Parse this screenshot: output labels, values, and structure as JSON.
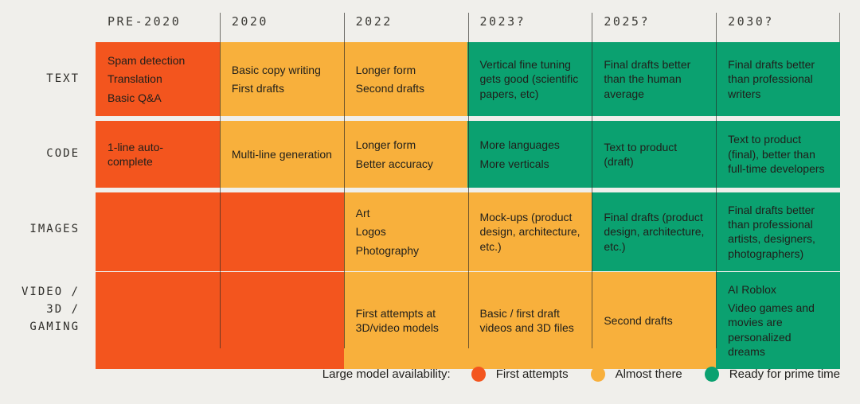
{
  "palette": {
    "background": "#f0efeb",
    "first_attempts": "#f3551e",
    "almost_there": "#f8b03c",
    "ready": "#0ba170",
    "cell_text": "#201f1b",
    "grid_line": "#4a4843"
  },
  "columns": [
    "PRE-2020",
    "2020",
    "2022",
    "2023?",
    "2025?",
    "2030?"
  ],
  "rows": [
    {
      "label": "TEXT",
      "label_lines": [
        "TEXT"
      ],
      "cells": [
        {
          "status": "first_attempts",
          "lines": [
            "Spam detection",
            "Translation",
            "Basic Q&A"
          ]
        },
        {
          "status": "almost_there",
          "lines": [
            "Basic copy writing",
            "First drafts"
          ]
        },
        {
          "status": "almost_there",
          "lines": [
            "Longer form",
            "Second drafts"
          ]
        },
        {
          "status": "ready",
          "lines": [
            "Vertical fine tuning gets good (scientific papers, etc)"
          ]
        },
        {
          "status": "ready",
          "lines": [
            "Final drafts better than the human average"
          ]
        },
        {
          "status": "ready",
          "lines": [
            "Final drafts better than professional writers"
          ]
        }
      ]
    },
    {
      "label": "CODE",
      "label_lines": [
        "CODE"
      ],
      "cells": [
        {
          "status": "first_attempts",
          "lines": [
            "1-line auto-complete"
          ]
        },
        {
          "status": "almost_there",
          "lines": [
            "Multi-line generation"
          ]
        },
        {
          "status": "almost_there",
          "lines": [
            "Longer form",
            "Better accuracy"
          ]
        },
        {
          "status": "ready",
          "lines": [
            "More languages",
            "More verticals"
          ]
        },
        {
          "status": "ready",
          "lines": [
            "Text to product (draft)"
          ]
        },
        {
          "status": "ready",
          "lines": [
            "Text to product (final), better than full-time developers"
          ]
        }
      ]
    },
    {
      "label": "IMAGES",
      "label_lines": [
        "IMAGES"
      ],
      "cells": [
        {
          "status": "first_attempts",
          "lines": []
        },
        {
          "status": "first_attempts",
          "lines": []
        },
        {
          "status": "almost_there",
          "lines": [
            "Art",
            "Logos",
            "Photography"
          ]
        },
        {
          "status": "almost_there",
          "lines": [
            "Mock-ups (product design, architecture, etc.)"
          ]
        },
        {
          "status": "ready",
          "lines": [
            "Final drafts (product design, architecture, etc.)"
          ]
        },
        {
          "status": "ready",
          "lines": [
            "Final drafts better than professional artists, designers, photographers)"
          ]
        }
      ]
    },
    {
      "label": "VIDEO / 3D / GAMING",
      "label_lines": [
        "VIDEO /",
        "3D /",
        "GAMING"
      ],
      "cells": [
        {
          "status": "first_attempts",
          "lines": []
        },
        {
          "status": "first_attempts",
          "lines": []
        },
        {
          "status": "almost_there",
          "lines": [
            "First attempts at 3D/video models"
          ]
        },
        {
          "status": "almost_there",
          "lines": [
            "Basic / first draft videos and 3D files"
          ]
        },
        {
          "status": "almost_there",
          "lines": [
            "Second drafts"
          ]
        },
        {
          "status": "ready",
          "lines": [
            "AI Roblox",
            "Video games and movies are personalized dreams"
          ]
        }
      ]
    }
  ],
  "legend": {
    "title": "Large model availability:",
    "items": [
      {
        "label": "First attempts",
        "color_key": "first_attempts"
      },
      {
        "label": "Almost there",
        "color_key": "almost_there"
      },
      {
        "label": "Ready for prime time",
        "color_key": "ready"
      }
    ]
  },
  "chart_data": {
    "type": "heatmap",
    "title": "Large model availability by modality over time",
    "x": [
      "PRE-2020",
      "2020",
      "2022",
      "2023?",
      "2025?",
      "2030?"
    ],
    "y": [
      "TEXT",
      "CODE",
      "IMAGES",
      "VIDEO / 3D / GAMING"
    ],
    "legend_position": "bottom",
    "value_scale": [
      "first_attempts",
      "almost_there",
      "ready_for_prime_time"
    ],
    "values": [
      [
        "first_attempts",
        "almost_there",
        "almost_there",
        "ready_for_prime_time",
        "ready_for_prime_time",
        "ready_for_prime_time"
      ],
      [
        "first_attempts",
        "almost_there",
        "almost_there",
        "ready_for_prime_time",
        "ready_for_prime_time",
        "ready_for_prime_time"
      ],
      [
        "first_attempts",
        "first_attempts",
        "almost_there",
        "almost_there",
        "ready_for_prime_time",
        "ready_for_prime_time"
      ],
      [
        "first_attempts",
        "first_attempts",
        "almost_there",
        "almost_there",
        "almost_there",
        "ready_for_prime_time"
      ]
    ]
  }
}
